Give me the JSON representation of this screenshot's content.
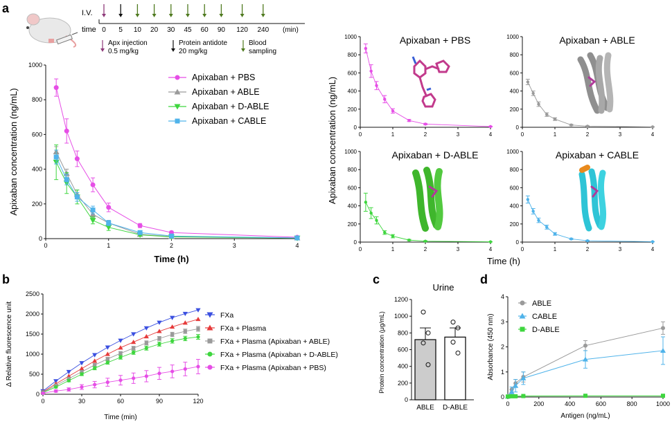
{
  "panel_labels": {
    "a": "a",
    "b": "b",
    "c": "c",
    "d": "d"
  },
  "timeline": {
    "iv_label": "I.V.",
    "time_label": "time",
    "ticks": [
      "0",
      "5",
      "10",
      "20",
      "30",
      "45",
      "60",
      "90",
      "120",
      "240"
    ],
    "unit": "(min)",
    "legend": {
      "apx_line1": "Apx injection",
      "apx_line2": "0.5 mg/kg",
      "prot_line1": "Protein antidote",
      "prot_line2": "20 mg/kg",
      "blood_line1": "Blood",
      "blood_line2": "sampling"
    },
    "colors": {
      "apx": "#8e3a7a",
      "protein": "#111111",
      "blood": "#4f7a1f"
    }
  },
  "chart_data": [
    {
      "id": "a-main",
      "type": "line",
      "xlabel": "Time (h)",
      "ylabel": "Apixaban concentration (ng/mL)",
      "xlim": [
        0,
        4
      ],
      "ylim": [
        0,
        1000
      ],
      "xticks": [
        0,
        1,
        2,
        3,
        4
      ],
      "yticks": [
        0,
        200,
        400,
        600,
        800,
        1000
      ],
      "x": [
        0.167,
        0.333,
        0.5,
        0.75,
        1,
        1.5,
        2,
        4
      ],
      "legend_position": "top-right",
      "series": [
        {
          "name": "Apixaban + PBS",
          "color": "#e64ee6",
          "marker": "circle",
          "values": [
            870,
            620,
            460,
            310,
            180,
            75,
            35,
            8
          ],
          "errors": [
            50,
            70,
            45,
            40,
            25,
            12,
            8,
            4
          ]
        },
        {
          "name": "Apixaban + ABLE",
          "color": "#9a9a9a",
          "marker": "triangle-up",
          "values": [
            500,
            375,
            255,
            140,
            90,
            25,
            12,
            4
          ],
          "errors": [
            30,
            25,
            25,
            20,
            15,
            8,
            5,
            2
          ]
        },
        {
          "name": "Apixaban + D-ABLE",
          "color": "#3ed63e",
          "marker": "triangle-down",
          "values": [
            440,
            320,
            240,
            105,
            65,
            22,
            10,
            3
          ],
          "errors": [
            100,
            60,
            40,
            20,
            18,
            8,
            5,
            2
          ]
        },
        {
          "name": "Apixaban + CABLE",
          "color": "#4fb3ea",
          "marker": "square",
          "values": [
            470,
            340,
            240,
            165,
            90,
            35,
            15,
            4
          ],
          "errors": [
            40,
            30,
            25,
            22,
            15,
            8,
            5,
            2
          ]
        }
      ]
    },
    {
      "id": "a-pbs",
      "type": "line",
      "title": "Apixaban + PBS",
      "xlim": [
        0,
        4
      ],
      "ylim": [
        0,
        1000
      ],
      "xticks": [
        0,
        1,
        2,
        3,
        4
      ],
      "yticks": [
        0,
        200,
        400,
        600,
        800,
        1000
      ],
      "x": [
        0.167,
        0.333,
        0.5,
        0.75,
        1,
        1.5,
        2,
        4
      ],
      "series": [
        {
          "name": "",
          "color": "#e64ee6",
          "values": [
            870,
            620,
            460,
            310,
            180,
            75,
            35,
            8
          ],
          "errors": [
            50,
            70,
            45,
            40,
            25,
            12,
            8,
            4
          ]
        }
      ]
    },
    {
      "id": "a-able",
      "type": "line",
      "title": "Apixaban + ABLE",
      "xlim": [
        0,
        4
      ],
      "ylim": [
        0,
        1000
      ],
      "xticks": [
        0,
        1,
        2,
        3,
        4
      ],
      "yticks": [
        0,
        200,
        400,
        600,
        800,
        1000
      ],
      "x": [
        0.167,
        0.333,
        0.5,
        0.75,
        1,
        1.5,
        2,
        4
      ],
      "series": [
        {
          "name": "",
          "color": "#9a9a9a",
          "values": [
            500,
            375,
            255,
            140,
            90,
            25,
            12,
            4
          ],
          "errors": [
            30,
            25,
            25,
            20,
            15,
            8,
            5,
            2
          ]
        }
      ]
    },
    {
      "id": "a-dable",
      "type": "line",
      "title": "Apixaban + D-ABLE",
      "xlim": [
        0,
        4
      ],
      "ylim": [
        0,
        1000
      ],
      "xticks": [
        0,
        1,
        2,
        3,
        4
      ],
      "yticks": [
        0,
        200,
        400,
        600,
        800,
        1000
      ],
      "x": [
        0.167,
        0.333,
        0.5,
        0.75,
        1,
        1.5,
        2,
        4
      ],
      "series": [
        {
          "name": "",
          "color": "#3ed63e",
          "values": [
            440,
            320,
            240,
            105,
            65,
            22,
            10,
            3
          ],
          "errors": [
            100,
            60,
            40,
            20,
            18,
            8,
            5,
            2
          ]
        }
      ]
    },
    {
      "id": "a-cable",
      "type": "line",
      "title": "Apixaban + CABLE",
      "xlim": [
        0,
        4
      ],
      "ylim": [
        0,
        1000
      ],
      "xticks": [
        0,
        1,
        2,
        3,
        4
      ],
      "yticks": [
        0,
        200,
        400,
        600,
        800,
        1000
      ],
      "x": [
        0.167,
        0.333,
        0.5,
        0.75,
        1,
        1.5,
        2,
        4
      ],
      "series": [
        {
          "name": "",
          "color": "#4fb3ea",
          "values": [
            470,
            340,
            240,
            165,
            90,
            35,
            15,
            4
          ],
          "errors": [
            40,
            30,
            25,
            22,
            15,
            8,
            5,
            2
          ]
        }
      ]
    },
    {
      "id": "b",
      "type": "line",
      "xlabel": "Time (min)",
      "ylabel": "Δ Relative fluorescence unit",
      "xlim": [
        0,
        120
      ],
      "ylim": [
        0,
        2500
      ],
      "xticks": [
        0,
        30,
        60,
        90,
        120
      ],
      "yticks": [
        0,
        500,
        1000,
        1500,
        2000,
        2500
      ],
      "x": [
        0,
        10,
        20,
        30,
        40,
        50,
        60,
        70,
        80,
        90,
        100,
        110,
        120
      ],
      "legend_position": "top-right",
      "series": [
        {
          "name": "FXa",
          "color": "#3a4fe0",
          "marker": "triangle-down",
          "values": [
            80,
            330,
            560,
            780,
            980,
            1170,
            1340,
            1500,
            1650,
            1790,
            1910,
            2010,
            2100
          ],
          "errors": []
        },
        {
          "name": "FXa + Plasma",
          "color": "#e63a3a",
          "marker": "triangle-up",
          "values": [
            60,
            260,
            450,
            640,
            830,
            1000,
            1160,
            1300,
            1440,
            1570,
            1680,
            1780,
            1870
          ],
          "errors": []
        },
        {
          "name": "FXa + Plasma (Apixaban + ABLE)",
          "color": "#9a9a9a",
          "marker": "square",
          "values": [
            50,
            220,
            390,
            560,
            730,
            880,
            1020,
            1150,
            1280,
            1390,
            1490,
            1570,
            1630
          ],
          "errors": [
            20,
            25,
            30,
            35,
            40,
            40,
            45,
            45,
            50,
            50,
            55,
            55,
            60
          ]
        },
        {
          "name": "FXa + Plasma (Apixaban + D-ABLE)",
          "color": "#3ed63e",
          "marker": "circle",
          "values": [
            40,
            180,
            340,
            500,
            650,
            790,
            920,
            1040,
            1150,
            1250,
            1330,
            1390,
            1430
          ],
          "errors": [
            20,
            25,
            30,
            35,
            40,
            40,
            45,
            45,
            50,
            50,
            55,
            55,
            60
          ]
        },
        {
          "name": "FXa + Plasma (Apixaban + PBS)",
          "color": "#e64ee6",
          "marker": "circle",
          "values": [
            30,
            80,
            120,
            180,
            240,
            300,
            350,
            400,
            450,
            520,
            570,
            630,
            690
          ],
          "errors": [
            20,
            30,
            40,
            60,
            80,
            100,
            120,
            130,
            140,
            150,
            160,
            170,
            180
          ]
        }
      ]
    },
    {
      "id": "c",
      "type": "bar",
      "title": "Urine",
      "ylabel": "Protein concentration (μg/mL)",
      "ylim": [
        0,
        1200
      ],
      "yticks": [
        0,
        200,
        400,
        600,
        800,
        1000,
        1200
      ],
      "categories": [
        "ABLE",
        "D-ABLE"
      ],
      "values": [
        720,
        750
      ],
      "errors": [
        140,
        110
      ],
      "bar_colors": [
        "#cccccc",
        "#ffffff"
      ],
      "points": [
        [
          1050,
          800,
          680,
          420
        ],
        [
          930,
          860,
          690,
          560
        ]
      ]
    },
    {
      "id": "d",
      "type": "line",
      "xlabel": "Antigen (ng/mL)",
      "ylabel": "Absorbance (450 nm)",
      "xlim": [
        0,
        1000
      ],
      "ylim": [
        0,
        4
      ],
      "xticks": [
        0,
        200,
        400,
        600,
        800,
        1000
      ],
      "yticks": [
        0,
        1,
        2,
        3,
        4
      ],
      "x": [
        0,
        25,
        50,
        100,
        500,
        1000
      ],
      "legend_position": "top-left",
      "series": [
        {
          "name": "ABLE",
          "color": "#9a9a9a",
          "marker": "circle",
          "values": [
            0.02,
            0.3,
            0.55,
            0.8,
            2.05,
            2.75
          ],
          "errors": [
            0.02,
            0.1,
            0.15,
            0.2,
            0.2,
            0.25
          ]
        },
        {
          "name": "CABLE",
          "color": "#4fb3ea",
          "marker": "triangle-up",
          "values": [
            0.02,
            0.2,
            0.45,
            0.75,
            1.5,
            1.85
          ],
          "errors": [
            0.02,
            0.2,
            0.25,
            0.25,
            0.35,
            0.55
          ]
        },
        {
          "name": "D-ABLE",
          "color": "#3ed63e",
          "marker": "square",
          "values": [
            0.02,
            0.03,
            0.03,
            0.04,
            0.05,
            0.05
          ],
          "errors": [
            0.01,
            0.01,
            0.01,
            0.01,
            0.01,
            0.01
          ]
        }
      ]
    }
  ],
  "shared_axis": {
    "right_ylabel": "Apixaban concentration (ng/mL)",
    "right_xlabel": "Time (h)"
  }
}
